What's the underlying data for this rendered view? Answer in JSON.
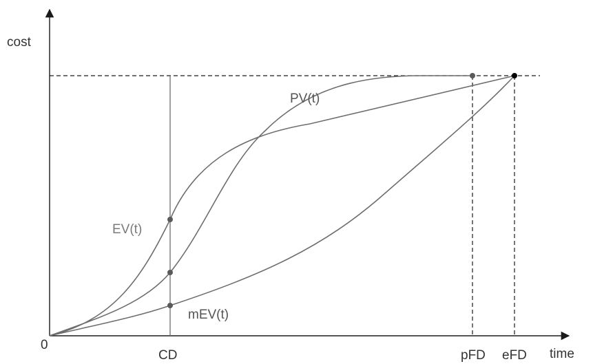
{
  "axes": {
    "y_label": "cost",
    "x_label": "time",
    "origin_label": "0"
  },
  "markers": {
    "cd": "CD",
    "pfd": "pFD",
    "efd": "eFD"
  },
  "curves": {
    "pv": "PV(t)",
    "ev": "EV(t)",
    "mev": "mEV(t)"
  },
  "colors": {
    "axis": "#1a1a1a",
    "curve": "#6d6d6d",
    "point": "#5a5a5a",
    "end_point": "#000000",
    "dashed": "#1a1a1a"
  }
}
